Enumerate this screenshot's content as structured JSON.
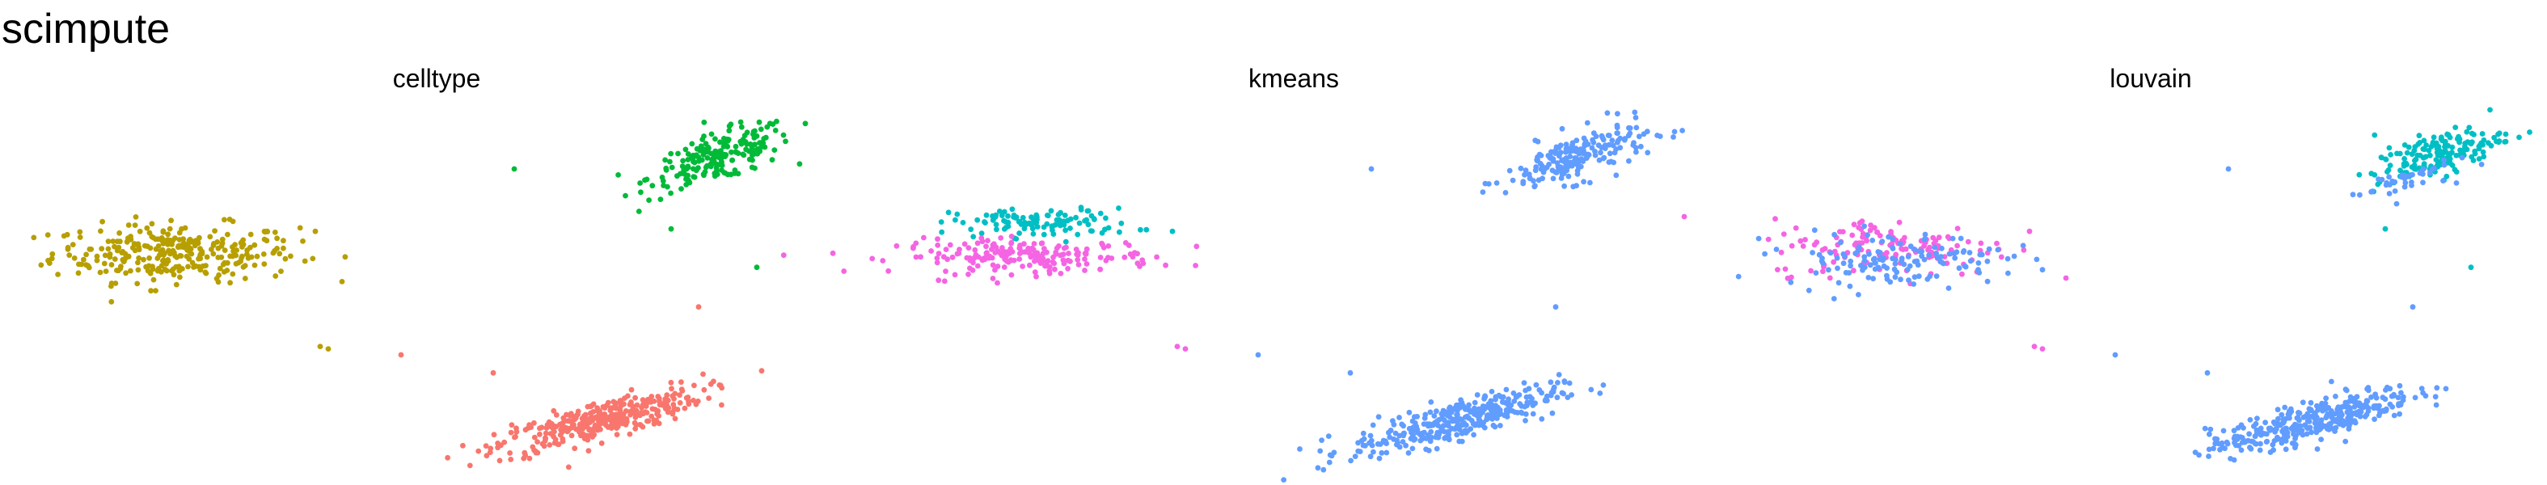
{
  "title": "scimpute",
  "colors": {
    "olive": "#B79F00",
    "red": "#F8766D",
    "green": "#00BA38",
    "teal": "#00BFC4",
    "blue": "#619CFF",
    "magenta": "#F564E3"
  },
  "chart_data": [
    {
      "type": "scatter",
      "title": "celltype",
      "xlabel": "",
      "ylabel": "",
      "axes_visible": false,
      "grid": false,
      "legend": "none",
      "clusters": [
        {
          "color": "#B79F00",
          "n": 300,
          "center": [
            0.88,
            0.0
          ],
          "spread": [
            0.38,
            0.12
          ],
          "tilt": 0.0
        },
        {
          "color": "#00BA38",
          "n": 200,
          "center": [
            4.25,
            0.8
          ],
          "spread": [
            0.22,
            0.1
          ],
          "tilt": 0.4
        },
        {
          "color": "#F8766D",
          "n": 350,
          "center": [
            3.5,
            -1.4
          ],
          "spread": [
            0.32,
            0.08
          ],
          "tilt": 0.35
        }
      ],
      "outliers": [
        {
          "x": 2.98,
          "y": 0.7,
          "color": "#00BA38"
        },
        {
          "x": 3.95,
          "y": 0.2,
          "color": "#00BA38"
        },
        {
          "x": 4.48,
          "y": -0.12,
          "color": "#00BA38"
        },
        {
          "x": 1.75,
          "y": 0.18,
          "color": "#B79F00"
        },
        {
          "x": 1.78,
          "y": -0.78,
          "color": "#B79F00"
        },
        {
          "x": 1.83,
          "y": -0.8,
          "color": "#B79F00"
        },
        {
          "x": 2.28,
          "y": -0.85,
          "color": "#F8766D"
        },
        {
          "x": 2.85,
          "y": -1.0,
          "color": "#F8766D"
        },
        {
          "x": 4.12,
          "y": -0.45,
          "color": "#F8766D"
        }
      ]
    },
    {
      "type": "scatter",
      "title": "kmeans",
      "xlabel": "",
      "ylabel": "",
      "axes_visible": false,
      "grid": false,
      "legend": "none",
      "clusters": [
        {
          "color": "#00BFC4",
          "n": 110,
          "center": [
            0.95,
            0.25
          ],
          "spread": [
            0.28,
            0.06
          ],
          "tilt": 0.0
        },
        {
          "color": "#F564E3",
          "n": 200,
          "center": [
            0.85,
            -0.03
          ],
          "spread": [
            0.4,
            0.07
          ],
          "tilt": 0.0
        },
        {
          "color": "#619CFF",
          "n": 200,
          "center": [
            4.25,
            0.8
          ],
          "spread": [
            0.22,
            0.1
          ],
          "tilt": 0.4
        },
        {
          "color": "#619CFF",
          "n": 350,
          "center": [
            3.5,
            -1.4
          ],
          "spread": [
            0.32,
            0.08
          ],
          "tilt": 0.35
        }
      ],
      "outliers": [
        {
          "x": 2.98,
          "y": 0.7,
          "color": "#619CFF"
        },
        {
          "x": 1.75,
          "y": 0.18,
          "color": "#00BFC4"
        },
        {
          "x": 1.78,
          "y": -0.78,
          "color": "#F564E3"
        },
        {
          "x": 1.83,
          "y": -0.8,
          "color": "#F564E3"
        },
        {
          "x": 2.28,
          "y": -0.85,
          "color": "#619CFF"
        },
        {
          "x": 2.85,
          "y": -1.0,
          "color": "#619CFF"
        },
        {
          "x": 4.12,
          "y": -0.45,
          "color": "#619CFF"
        }
      ]
    },
    {
      "type": "scatter",
      "title": "louvain",
      "xlabel": "",
      "ylabel": "",
      "axes_visible": false,
      "grid": false,
      "legend": "none",
      "clusters": [
        {
          "color": "#F564E3",
          "n": 140,
          "center": [
            0.9,
            0.05
          ],
          "spread": [
            0.38,
            0.12
          ],
          "tilt": 0.0
        },
        {
          "color": "#619CFF",
          "n": 140,
          "center": [
            0.9,
            -0.05
          ],
          "spread": [
            0.34,
            0.11
          ],
          "tilt": 0.0
        },
        {
          "color": "#00BFC4",
          "n": 170,
          "center": [
            4.28,
            0.82
          ],
          "spread": [
            0.2,
            0.09
          ],
          "tilt": 0.4
        },
        {
          "color": "#619CFF",
          "n": 40,
          "center": [
            4.05,
            0.6
          ],
          "spread": [
            0.15,
            0.06
          ],
          "tilt": 0.4
        },
        {
          "color": "#619CFF",
          "n": 350,
          "center": [
            3.5,
            -1.4
          ],
          "spread": [
            0.32,
            0.08
          ],
          "tilt": 0.35
        }
      ],
      "outliers": [
        {
          "x": 2.98,
          "y": 0.7,
          "color": "#619CFF"
        },
        {
          "x": 3.95,
          "y": 0.2,
          "color": "#00BFC4"
        },
        {
          "x": 4.48,
          "y": -0.12,
          "color": "#00BFC4"
        },
        {
          "x": 1.75,
          "y": 0.18,
          "color": "#F564E3"
        },
        {
          "x": 1.78,
          "y": -0.78,
          "color": "#F564E3"
        },
        {
          "x": 1.83,
          "y": -0.8,
          "color": "#F564E3"
        },
        {
          "x": 2.28,
          "y": -0.85,
          "color": "#619CFF"
        },
        {
          "x": 2.85,
          "y": -1.0,
          "color": "#619CFF"
        },
        {
          "x": 4.12,
          "y": -0.45,
          "color": "#619CFF"
        }
      ]
    }
  ]
}
